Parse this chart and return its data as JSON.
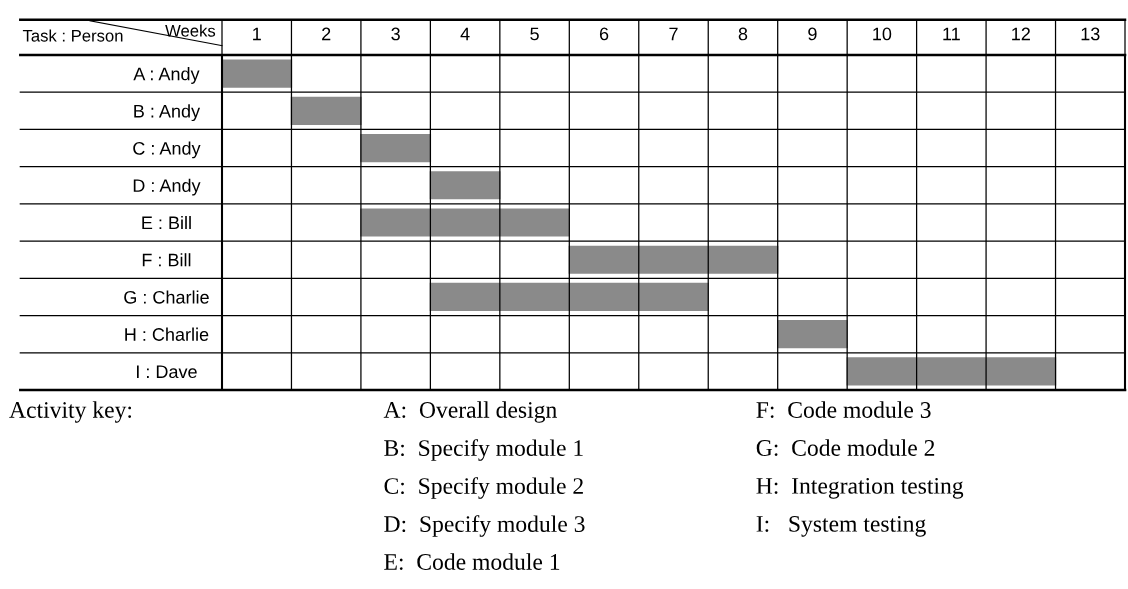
{
  "chart_data": {
    "type": "bar",
    "orientation": "horizontal",
    "xlabel": "Weeks",
    "ylabel": "Task : Person",
    "categories": [
      "A : Andy",
      "B : Andy",
      "C : Andy",
      "D : Andy",
      "E : Bill",
      "F : Bill",
      "G : Charlie",
      "H : Charlie",
      "I : Dave"
    ],
    "base": [
      0,
      1,
      2,
      3,
      2,
      5,
      3,
      8,
      9
    ],
    "values": [
      1,
      1,
      1,
      1,
      3,
      3,
      4,
      1,
      3
    ],
    "color": "#8a8a8a",
    "xlim": [
      0,
      13
    ],
    "xticks": [
      {
        "value": 0,
        "label": null
      },
      {
        "value": 0.5,
        "label": "1"
      },
      {
        "value": 1,
        "label": null
      },
      {
        "value": 1.5,
        "label": "2"
      },
      {
        "value": 2,
        "label": null
      },
      {
        "value": 2.5,
        "label": "3"
      },
      {
        "value": 3,
        "label": null
      },
      {
        "value": 3.5,
        "label": "4"
      },
      {
        "value": 4,
        "label": null
      },
      {
        "value": 4.5,
        "label": "5"
      },
      {
        "value": 5,
        "label": null
      },
      {
        "value": 5.5,
        "label": "6"
      },
      {
        "value": 6,
        "label": null
      },
      {
        "value": 6.5,
        "label": "7"
      },
      {
        "value": 7,
        "label": null
      },
      {
        "value": 7.5,
        "label": "8"
      },
      {
        "value": 8,
        "label": null
      },
      {
        "value": 8.5,
        "label": "9"
      },
      {
        "value": 9,
        "label": null
      },
      {
        "value": 9.5,
        "label": "10"
      },
      {
        "value": 10,
        "label": null
      },
      {
        "value": 10.5,
        "label": "11"
      },
      {
        "value": 11,
        "label": null
      },
      {
        "value": 11.5,
        "label": "12"
      },
      {
        "value": 12,
        "label": null
      },
      {
        "value": 12.5,
        "label": "13"
      },
      {
        "value": 13,
        "label": null
      }
    ],
    "grid": true,
    "annotations": [
      "Activity key:",
      "A:  Overall design",
      "B:  Specify module 1",
      "C:  Specify module 2",
      "D:  Specify module 3",
      "E:  Code module 1",
      "F:  Code module 3",
      "G:  Code module 2",
      "H:  Integration testing",
      "I:   System testing"
    ]
  }
}
